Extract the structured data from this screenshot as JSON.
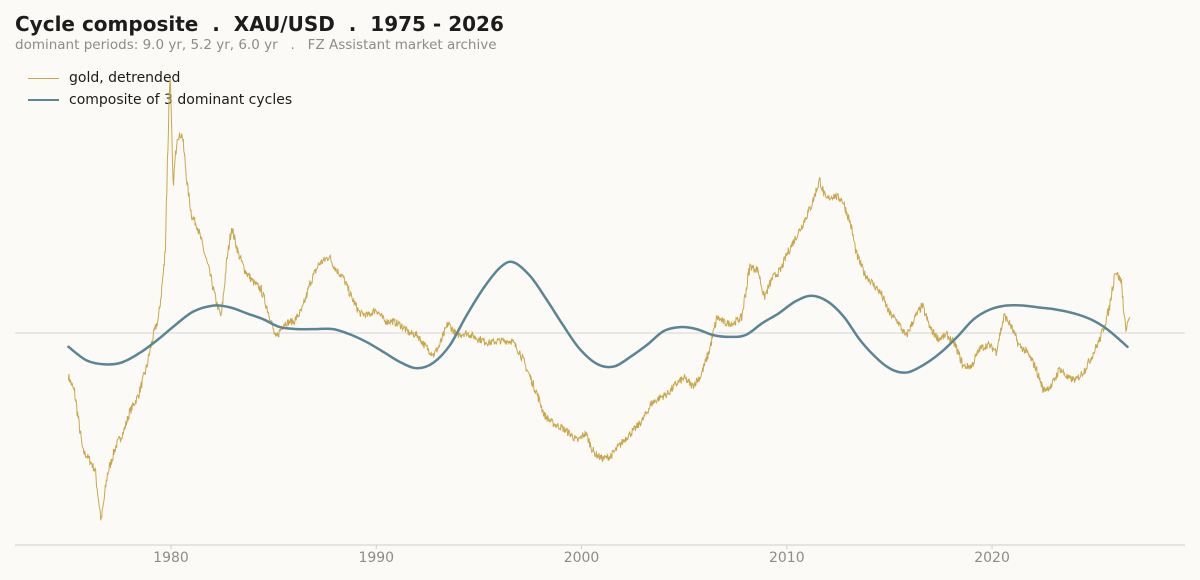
{
  "header": {
    "title": "Cycle composite  .  XAU/USD  .  1975 - 2026",
    "subtitle": "dominant periods: 9.0 yr, 5.2 yr, 6.0 yr   .   FZ Assistant market archive"
  },
  "colors": {
    "gold_series": "#c9a84c",
    "composite_series": "#5b8594",
    "axis": "#cfcfcf",
    "zero_line": "#d7d7d7",
    "tick_text": "#8c8c8c",
    "background": "#fcfaf7"
  },
  "chart_data": {
    "type": "line",
    "title": "Cycle composite  .  XAU/USD  .  1975 - 2026",
    "subtitle": "dominant periods: 9.0 yr, 5.2 yr, 6.0 yr   .   FZ Assistant market archive",
    "xlabel": "",
    "ylabel": "",
    "xlim": [
      1972.4,
      2029.4
    ],
    "ylim": [
      -1.08,
      1.34
    ],
    "x_ticks": [
      1980,
      1990,
      2000,
      2010,
      2020
    ],
    "y_ticks": [],
    "grid": false,
    "zero_line": true,
    "legend": {
      "position": "top-left"
    },
    "series": [
      {
        "name": "gold, detrended",
        "color": "#c9a84c",
        "style": "thin noisy line",
        "points": [
          [
            1975.0,
            -0.22
          ],
          [
            1975.3,
            -0.3
          ],
          [
            1975.7,
            -0.6
          ],
          [
            1976.0,
            -0.64
          ],
          [
            1976.3,
            -0.7
          ],
          [
            1976.6,
            -0.96
          ],
          [
            1976.9,
            -0.72
          ],
          [
            1977.3,
            -0.58
          ],
          [
            1977.7,
            -0.5
          ],
          [
            1978.0,
            -0.4
          ],
          [
            1978.4,
            -0.32
          ],
          [
            1978.8,
            -0.18
          ],
          [
            1979.1,
            -0.03
          ],
          [
            1979.4,
            0.08
          ],
          [
            1979.7,
            0.38
          ],
          [
            1979.95,
            1.34
          ],
          [
            1980.1,
            0.75
          ],
          [
            1980.3,
            1.0
          ],
          [
            1980.55,
            1.01
          ],
          [
            1980.8,
            0.75
          ],
          [
            1981.0,
            0.6
          ],
          [
            1981.3,
            0.54
          ],
          [
            1981.6,
            0.42
          ],
          [
            1981.9,
            0.3
          ],
          [
            1982.2,
            0.16
          ],
          [
            1982.45,
            0.08
          ],
          [
            1982.7,
            0.35
          ],
          [
            1982.95,
            0.54
          ],
          [
            1983.3,
            0.4
          ],
          [
            1983.6,
            0.32
          ],
          [
            1984.0,
            0.26
          ],
          [
            1984.4,
            0.22
          ],
          [
            1984.8,
            0.09
          ],
          [
            1985.1,
            -0.03
          ],
          [
            1985.5,
            0.05
          ],
          [
            1986.0,
            0.06
          ],
          [
            1986.4,
            0.12
          ],
          [
            1986.8,
            0.26
          ],
          [
            1987.2,
            0.35
          ],
          [
            1987.7,
            0.39
          ],
          [
            1988.0,
            0.33
          ],
          [
            1988.4,
            0.28
          ],
          [
            1988.8,
            0.18
          ],
          [
            1989.2,
            0.1
          ],
          [
            1989.6,
            0.09
          ],
          [
            1990.0,
            0.12
          ],
          [
            1990.4,
            0.06
          ],
          [
            1990.8,
            0.06
          ],
          [
            1991.2,
            0.04
          ],
          [
            1991.6,
            0.0
          ],
          [
            1992.0,
            -0.01
          ],
          [
            1992.4,
            -0.07
          ],
          [
            1992.8,
            -0.11
          ],
          [
            1993.1,
            -0.06
          ],
          [
            1993.5,
            0.05
          ],
          [
            1993.9,
            -0.01
          ],
          [
            1994.4,
            0.0
          ],
          [
            1995.0,
            -0.03
          ],
          [
            1995.5,
            -0.05
          ],
          [
            1996.0,
            -0.04
          ],
          [
            1996.6,
            -0.04
          ],
          [
            1997.0,
            -0.1
          ],
          [
            1997.4,
            -0.2
          ],
          [
            1997.8,
            -0.3
          ],
          [
            1998.2,
            -0.42
          ],
          [
            1998.6,
            -0.46
          ],
          [
            1999.0,
            -0.48
          ],
          [
            1999.4,
            -0.51
          ],
          [
            1999.8,
            -0.55
          ],
          [
            2000.2,
            -0.51
          ],
          [
            2000.6,
            -0.61
          ],
          [
            2001.0,
            -0.64
          ],
          [
            2001.4,
            -0.63
          ],
          [
            2001.8,
            -0.58
          ],
          [
            2002.2,
            -0.53
          ],
          [
            2002.6,
            -0.49
          ],
          [
            2003.0,
            -0.44
          ],
          [
            2003.4,
            -0.36
          ],
          [
            2003.8,
            -0.33
          ],
          [
            2004.2,
            -0.31
          ],
          [
            2004.6,
            -0.26
          ],
          [
            2005.0,
            -0.23
          ],
          [
            2005.4,
            -0.27
          ],
          [
            2005.8,
            -0.22
          ],
          [
            2006.2,
            -0.1
          ],
          [
            2006.6,
            0.08
          ],
          [
            2007.0,
            0.05
          ],
          [
            2007.4,
            0.05
          ],
          [
            2007.8,
            0.08
          ],
          [
            2008.2,
            0.34
          ],
          [
            2008.6,
            0.32
          ],
          [
            2008.9,
            0.18
          ],
          [
            2009.3,
            0.28
          ],
          [
            2009.7,
            0.32
          ],
          [
            2010.0,
            0.4
          ],
          [
            2010.4,
            0.48
          ],
          [
            2010.8,
            0.56
          ],
          [
            2011.2,
            0.65
          ],
          [
            2011.6,
            0.78
          ],
          [
            2011.9,
            0.68
          ],
          [
            2012.3,
            0.7
          ],
          [
            2012.7,
            0.68
          ],
          [
            2013.1,
            0.56
          ],
          [
            2013.4,
            0.4
          ],
          [
            2013.8,
            0.3
          ],
          [
            2014.2,
            0.25
          ],
          [
            2014.6,
            0.2
          ],
          [
            2015.0,
            0.1
          ],
          [
            2015.4,
            0.06
          ],
          [
            2015.8,
            -0.02
          ],
          [
            2016.2,
            0.07
          ],
          [
            2016.6,
            0.14
          ],
          [
            2017.0,
            0.02
          ],
          [
            2017.4,
            -0.03
          ],
          [
            2017.8,
            -0.01
          ],
          [
            2018.2,
            -0.06
          ],
          [
            2018.6,
            -0.17
          ],
          [
            2019.0,
            -0.17
          ],
          [
            2019.4,
            -0.08
          ],
          [
            2019.8,
            -0.06
          ],
          [
            2020.2,
            -0.09
          ],
          [
            2020.6,
            0.09
          ],
          [
            2020.9,
            0.04
          ],
          [
            2021.3,
            -0.06
          ],
          [
            2021.7,
            -0.1
          ],
          [
            2022.1,
            -0.17
          ],
          [
            2022.5,
            -0.29
          ],
          [
            2022.9,
            -0.27
          ],
          [
            2023.3,
            -0.18
          ],
          [
            2023.7,
            -0.23
          ],
          [
            2024.1,
            -0.24
          ],
          [
            2024.5,
            -0.19
          ],
          [
            2024.9,
            -0.11
          ],
          [
            2025.3,
            -0.02
          ],
          [
            2025.7,
            0.12
          ],
          [
            2026.0,
            0.32
          ],
          [
            2026.3,
            0.26
          ],
          [
            2026.5,
            0.02
          ],
          [
            2026.7,
            0.08
          ]
        ]
      },
      {
        "name": "composite of 3 dominant cycles",
        "color": "#5b8594",
        "style": "thick smooth line",
        "points": [
          [
            1975.0,
            -0.07
          ],
          [
            1975.9,
            -0.14
          ],
          [
            1976.8,
            -0.16
          ],
          [
            1977.6,
            -0.15
          ],
          [
            1978.5,
            -0.1
          ],
          [
            1979.4,
            -0.03
          ],
          [
            1980.2,
            0.04
          ],
          [
            1981.1,
            0.11
          ],
          [
            1982.1,
            0.14
          ],
          [
            1982.9,
            0.13
          ],
          [
            1983.7,
            0.1
          ],
          [
            1984.5,
            0.07
          ],
          [
            1985.3,
            0.03
          ],
          [
            1986.2,
            0.02
          ],
          [
            1987.0,
            0.02
          ],
          [
            1987.9,
            0.02
          ],
          [
            1988.8,
            -0.01
          ],
          [
            1989.6,
            -0.05
          ],
          [
            1990.4,
            -0.1
          ],
          [
            1991.2,
            -0.15
          ],
          [
            1992.0,
            -0.18
          ],
          [
            1992.8,
            -0.15
          ],
          [
            1993.6,
            -0.06
          ],
          [
            1994.4,
            0.09
          ],
          [
            1995.3,
            0.24
          ],
          [
            1996.1,
            0.34
          ],
          [
            1996.7,
            0.36
          ],
          [
            1997.5,
            0.29
          ],
          [
            1998.3,
            0.17
          ],
          [
            1999.1,
            0.04
          ],
          [
            1999.9,
            -0.08
          ],
          [
            2000.8,
            -0.16
          ],
          [
            2001.6,
            -0.17
          ],
          [
            2002.4,
            -0.12
          ],
          [
            2003.2,
            -0.06
          ],
          [
            2004.0,
            0.01
          ],
          [
            2004.8,
            0.03
          ],
          [
            2005.6,
            0.02
          ],
          [
            2006.4,
            -0.01
          ],
          [
            2007.2,
            -0.02
          ],
          [
            2008.0,
            -0.01
          ],
          [
            2008.8,
            0.05
          ],
          [
            2009.6,
            0.1
          ],
          [
            2010.4,
            0.16
          ],
          [
            2011.2,
            0.19
          ],
          [
            2012.0,
            0.16
          ],
          [
            2012.8,
            0.08
          ],
          [
            2013.6,
            -0.04
          ],
          [
            2014.5,
            -0.14
          ],
          [
            2015.2,
            -0.19
          ],
          [
            2015.9,
            -0.2
          ],
          [
            2016.7,
            -0.16
          ],
          [
            2017.5,
            -0.1
          ],
          [
            2018.3,
            -0.02
          ],
          [
            2019.1,
            0.07
          ],
          [
            2019.9,
            0.12
          ],
          [
            2020.7,
            0.14
          ],
          [
            2021.5,
            0.14
          ],
          [
            2022.3,
            0.13
          ],
          [
            2023.1,
            0.12
          ],
          [
            2024.0,
            0.1
          ],
          [
            2024.8,
            0.07
          ],
          [
            2025.6,
            0.02
          ],
          [
            2026.6,
            -0.07
          ]
        ]
      }
    ]
  }
}
